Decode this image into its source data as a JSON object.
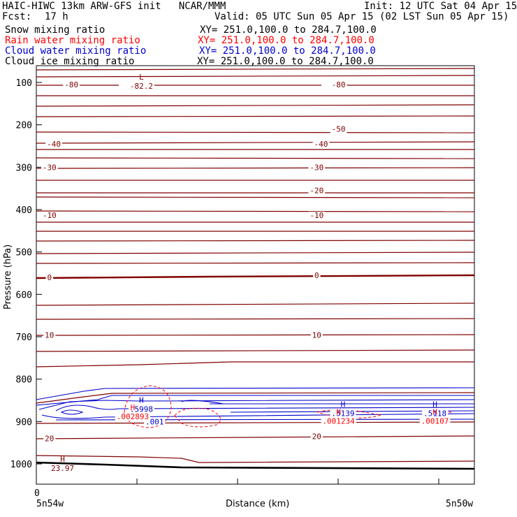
{
  "header": {
    "title_left": "HAIC-HIWC 13km ARW-GFS init   NCAR/MMM",
    "init": "Init: 12 UTC Sat 04 Apr 15",
    "fcst_label": "Fcst:",
    "fcst_value": "17 h",
    "valid": "Valid: 05 UTC Sun 05 Apr 15 (02 LST Sun 05 Apr 15)",
    "fields": [
      {
        "name": "Snow mixing ratio",
        "xy": "XY= 251.0,100.0 to 284.7,100.0",
        "color": "#000000"
      },
      {
        "name": "Rain water mixing ratio",
        "xy": "XY= 251.0,100.0 to 284.7,100.0",
        "color": "#ff0000"
      },
      {
        "name": "Cloud water mixing ratio",
        "xy": "XY= 251.0,100.0 to 284.7,100.0",
        "color": "#0000cc"
      },
      {
        "name": "Cloud ice mixing ratio",
        "xy": "XY= 251.0,100.0 to 284.7,100.0",
        "color": "#000000"
      }
    ]
  },
  "chart_data": {
    "type": "contour",
    "ylabel": "Pressure (hPa)",
    "xlabel": "Distance (km)",
    "x_left_label": "5n54w",
    "x_right_label": "5n50w",
    "x_zero_label": "0",
    "y_ticks": [
      100,
      200,
      300,
      400,
      500,
      600,
      700,
      800,
      900,
      1000
    ],
    "y_scale": "linear-pressure",
    "colors": {
      "temperature": "#800000",
      "rain": "#ff0000",
      "cloud_water": "#0000cc",
      "ground": "#000000"
    },
    "temperature_contour_labels": [
      {
        "value": "-80",
        "x": 0.08,
        "p": 105
      },
      {
        "value": "-80",
        "x": 0.69,
        "p": 105
      },
      {
        "value": "-50",
        "x": 0.69,
        "p": 210
      },
      {
        "value": "-40",
        "x": 0.04,
        "p": 245
      },
      {
        "value": "-40",
        "x": 0.65,
        "p": 245
      },
      {
        "value": "-30",
        "x": 0.03,
        "p": 300
      },
      {
        "value": "-30",
        "x": 0.64,
        "p": 300
      },
      {
        "value": "-20",
        "x": 0.64,
        "p": 355
      },
      {
        "value": "-10",
        "x": 0.03,
        "p": 413
      },
      {
        "value": "-10",
        "x": 0.64,
        "p": 413
      },
      {
        "value": "0",
        "x": 0.03,
        "p": 560
      },
      {
        "value": "0",
        "x": 0.64,
        "p": 555
      },
      {
        "value": "10",
        "x": 0.03,
        "p": 696
      },
      {
        "value": "10",
        "x": 0.64,
        "p": 696
      },
      {
        "value": "20",
        "x": 0.03,
        "p": 940
      },
      {
        "value": "20",
        "x": 0.64,
        "p": 935
      }
    ],
    "extrema": [
      {
        "kind": "L",
        "value": "-82.2",
        "x": 0.24,
        "p": 100,
        "field": "temperature"
      },
      {
        "kind": "H",
        "value": "23.97",
        "x": 0.06,
        "p": 1002,
        "field": "temperature"
      },
      {
        "kind": "H",
        "value": ".5998",
        "x": 0.24,
        "p": 862,
        "field": "cloud_water"
      },
      {
        "kind": "H",
        "value": ".5139",
        "x": 0.7,
        "p": 872,
        "field": "cloud_water"
      },
      {
        "kind": "H",
        "value": ".5118",
        "x": 0.91,
        "p": 872,
        "field": "cloud_water"
      },
      {
        "kind": "H",
        "value": ".002893",
        "x": 0.22,
        "p": 880,
        "field": "rain"
      },
      {
        "kind": "H",
        "value": ".001234",
        "x": 0.69,
        "p": 890,
        "field": "rain"
      },
      {
        "kind": "H",
        "value": ".00107",
        "x": 0.91,
        "p": 890,
        "field": "rain"
      }
    ],
    "cloud_water_labels": [
      {
        "value": ".001",
        "x": 0.27,
        "p": 900
      }
    ]
  }
}
